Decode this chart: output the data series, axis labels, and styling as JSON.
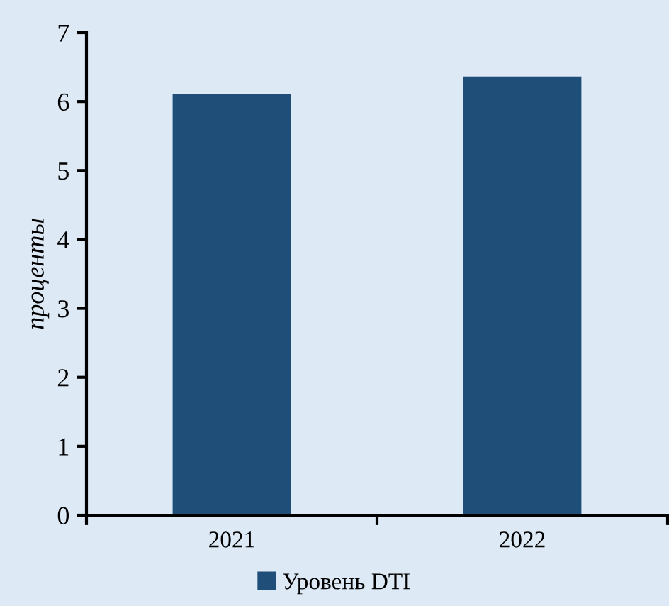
{
  "chart_data": {
    "type": "bar",
    "ylabel": "проценты",
    "categories": [
      "2021",
      "2022"
    ],
    "series": [
      {
        "name": "Уровень DTI",
        "color": "#1f4e79",
        "values": [
          6.1,
          6.35
        ]
      }
    ],
    "ylim": [
      0,
      7
    ],
    "yticks": [
      0,
      1,
      2,
      3,
      4,
      5,
      6,
      7
    ],
    "grid": false,
    "legend": "bottom"
  }
}
